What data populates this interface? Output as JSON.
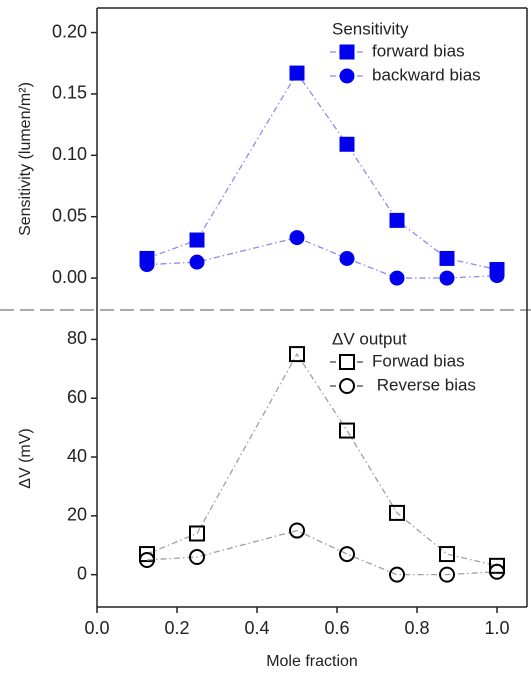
{
  "chart_data": [
    {
      "type": "line",
      "legend_title": "Sensitivity",
      "ylabel": "Sensitivity (lumen/m²)",
      "x": [
        0.125,
        0.25,
        0.5,
        0.625,
        0.75,
        0.875,
        1.0
      ],
      "series": [
        {
          "name": "forward bias",
          "color": "#0000ee",
          "line_color": "#8c8cf0",
          "marker": "square",
          "filled": true,
          "values": [
            0.016,
            0.031,
            0.167,
            0.109,
            0.047,
            0.016,
            0.007
          ]
        },
        {
          "name": "backward bias",
          "color": "#0000ee",
          "line_color": "#8c8cf0",
          "marker": "circle",
          "filled": true,
          "values": [
            0.011,
            0.013,
            0.033,
            0.016,
            0.0,
            0.0,
            0.002
          ]
        }
      ],
      "xlim": [
        0,
        1.075
      ],
      "ylim": [
        -0.026,
        0.22
      ],
      "yticks": [
        {
          "value": 0,
          "label": "0.00"
        },
        {
          "value": 0.05,
          "label": "0.05"
        },
        {
          "value": 0.1,
          "label": "0.10"
        },
        {
          "value": 0.15,
          "label": "0.15"
        },
        {
          "value": 0.2,
          "label": "0.20"
        }
      ],
      "legend": "upper right",
      "grid": false
    },
    {
      "type": "line",
      "legend_title": "ΔV output",
      "ylabel": "ΔV (mV)",
      "xlabel": "Mole fraction",
      "x": [
        0.125,
        0.25,
        0.5,
        0.625,
        0.75,
        0.875,
        1.0
      ],
      "series": [
        {
          "name": "Forwad bias",
          "color": "#000000",
          "line_color": "#a0a0a0",
          "marker": "square",
          "filled": false,
          "values": [
            7,
            14,
            75,
            49,
            21,
            7,
            3
          ]
        },
        {
          "name": " Reverse bias",
          "color": "#000000",
          "line_color": "#a0a0a0",
          "marker": "circle",
          "filled": false,
          "values": [
            5,
            6,
            15,
            7,
            0,
            0,
            1
          ]
        }
      ],
      "xlim": [
        0,
        1.075
      ],
      "ylim": [
        -11,
        90
      ],
      "xticks": [
        {
          "value": 0,
          "label": "0.0"
        },
        {
          "value": 0.2,
          "label": "0.2"
        },
        {
          "value": 0.4,
          "label": "0.4"
        },
        {
          "value": 0.6,
          "label": "0.6"
        },
        {
          "value": 0.8,
          "label": "0.8"
        },
        {
          "value": 1.0,
          "label": "1.0"
        }
      ],
      "yticks": [
        0,
        20,
        40,
        60,
        80
      ],
      "legend": "upper right",
      "grid": false
    }
  ]
}
